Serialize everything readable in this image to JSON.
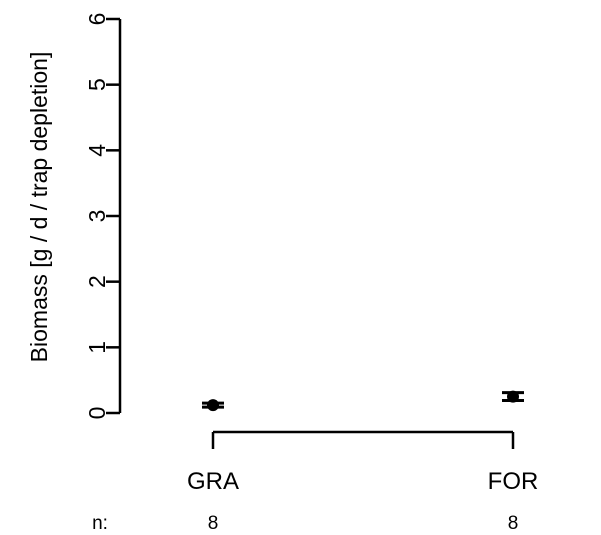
{
  "chart_data": {
    "type": "scatter",
    "title": "",
    "xlabel": "",
    "ylabel": "Biomass [g / d / trap depletion]",
    "ylim": [
      0,
      6
    ],
    "yticks": [
      "0",
      "1",
      "2",
      "3",
      "4",
      "5",
      "6"
    ],
    "categories": [
      "GRA",
      "FOR"
    ],
    "series": [
      {
        "values": [
          0.12,
          0.25
        ],
        "error_low": [
          0.09,
          0.19
        ],
        "error_high": [
          0.15,
          0.31
        ]
      }
    ],
    "sample_size_label": "n:",
    "sample_sizes": [
      "8",
      "8"
    ],
    "grid": false,
    "marker_color": "#000000",
    "axis_color": "#000000"
  }
}
